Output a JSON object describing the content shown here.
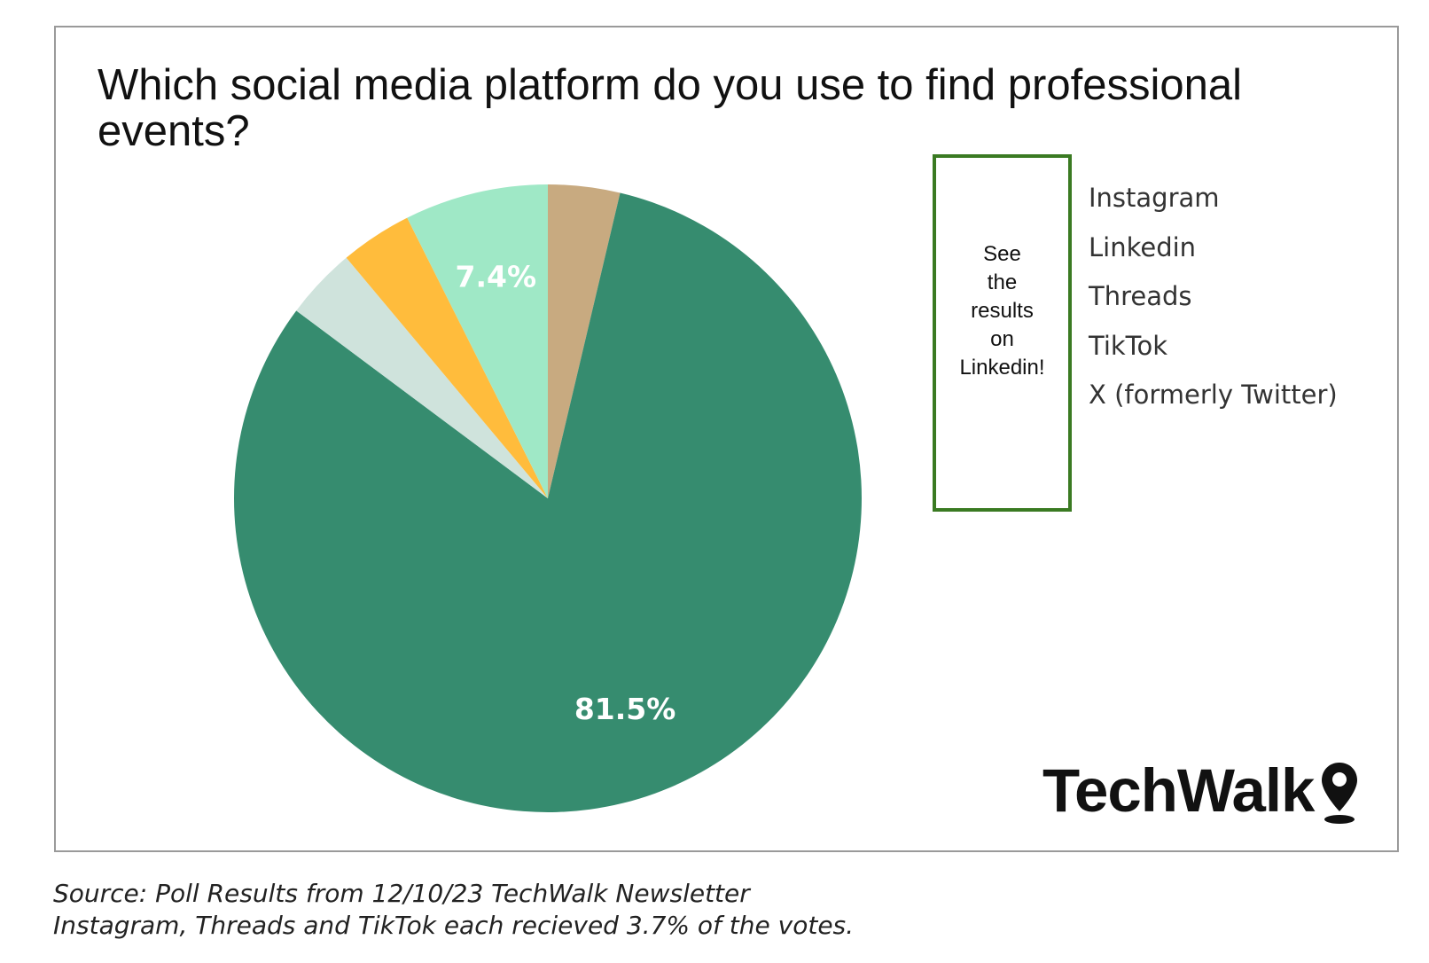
{
  "chart_data": {
    "type": "pie",
    "title": "Which social media platform do you use to find professional events?",
    "categories": [
      "Instagram",
      "Linkedin",
      "Threads",
      "TikTok",
      "X (formerly Twitter)"
    ],
    "values": [
      3.7,
      81.5,
      3.7,
      3.7,
      7.4
    ],
    "colors": [
      "#c8aa80",
      "#368c6f",
      "#cfe3dc",
      "#ffbc3c",
      "#9fe8c6"
    ],
    "data_labels": [
      "",
      "81.5%",
      "",
      "",
      "7.4%"
    ],
    "start_angle_deg": 0,
    "direction": "clockwise",
    "legend_position": "right"
  },
  "callout": {
    "lines": [
      "See",
      "the",
      "results",
      "on",
      "Linkedin!"
    ],
    "border_color": "#3a7a22"
  },
  "logo": {
    "text": "TechWalk",
    "icon": "map-pin-icon"
  },
  "footnote": {
    "line1": "Source: Poll Results from 12/10/23 TechWalk Newsletter",
    "line2": "Instagram, Threads and TikTok each recieved 3.7% of the votes."
  }
}
